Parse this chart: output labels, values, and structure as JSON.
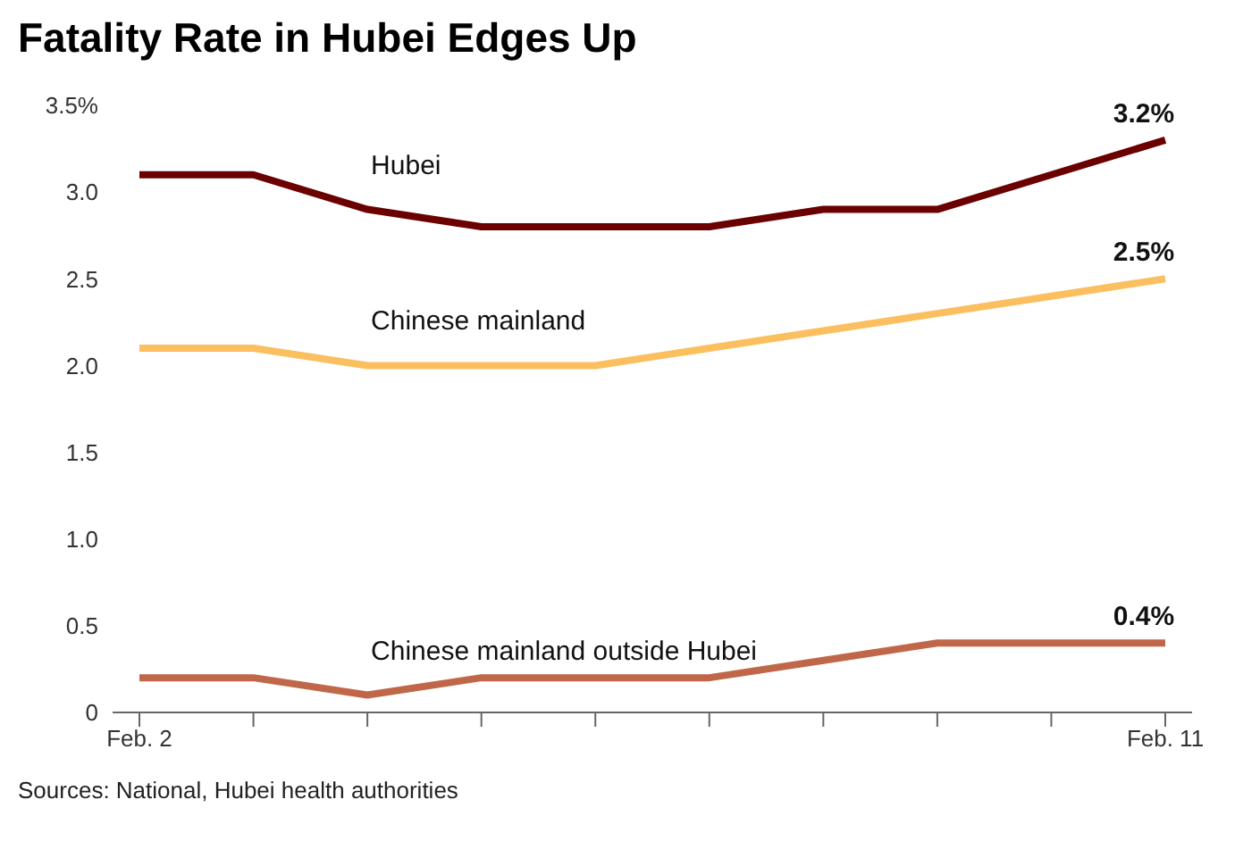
{
  "chart_data": {
    "type": "line",
    "title": "Fatality Rate in Hubei Edges Up",
    "categories": [
      "Feb. 2",
      null,
      null,
      null,
      null,
      null,
      null,
      null,
      null,
      "Feb. 11"
    ],
    "series": [
      {
        "name": "Hubei",
        "color": "#6b0000",
        "values": [
          3.1,
          3.1,
          2.9,
          2.8,
          2.8,
          2.8,
          2.9,
          2.9,
          3.1,
          3.3
        ]
      },
      {
        "name": "Chinese mainland",
        "color": "#fbbf5f",
        "values": [
          2.1,
          2.1,
          2.0,
          2.0,
          2.0,
          2.1,
          2.2,
          2.3,
          2.4,
          2.5
        ]
      },
      {
        "name": "Chinese mainland outside Hubei",
        "color": "#c0674a",
        "values": [
          0.2,
          0.2,
          0.1,
          0.2,
          0.2,
          0.2,
          0.3,
          0.4,
          0.4,
          0.4
        ]
      }
    ],
    "ylim": [
      0,
      3.5
    ],
    "yticks": [
      0,
      0.5,
      {
        "value": 1,
        "label": "1.0"
      },
      1.5,
      {
        "value": 2,
        "label": "2.0"
      },
      2.5,
      {
        "value": 3,
        "label": "3.0"
      },
      {
        "value": 3.5,
        "label": "3.5%"
      }
    ],
    "grid": false,
    "legend": false,
    "marker": "none",
    "line_style": "solid",
    "annotations": [
      {
        "text": "3.2%",
        "x": "Feb. 11",
        "y": 3.3
      },
      {
        "text": "2.5%",
        "x": "Feb. 11",
        "y": 2.5
      },
      {
        "text": "0.4%",
        "x": "Feb. 11",
        "y": 0.4
      },
      "Sources: National, Hubei health authorities"
    ]
  }
}
